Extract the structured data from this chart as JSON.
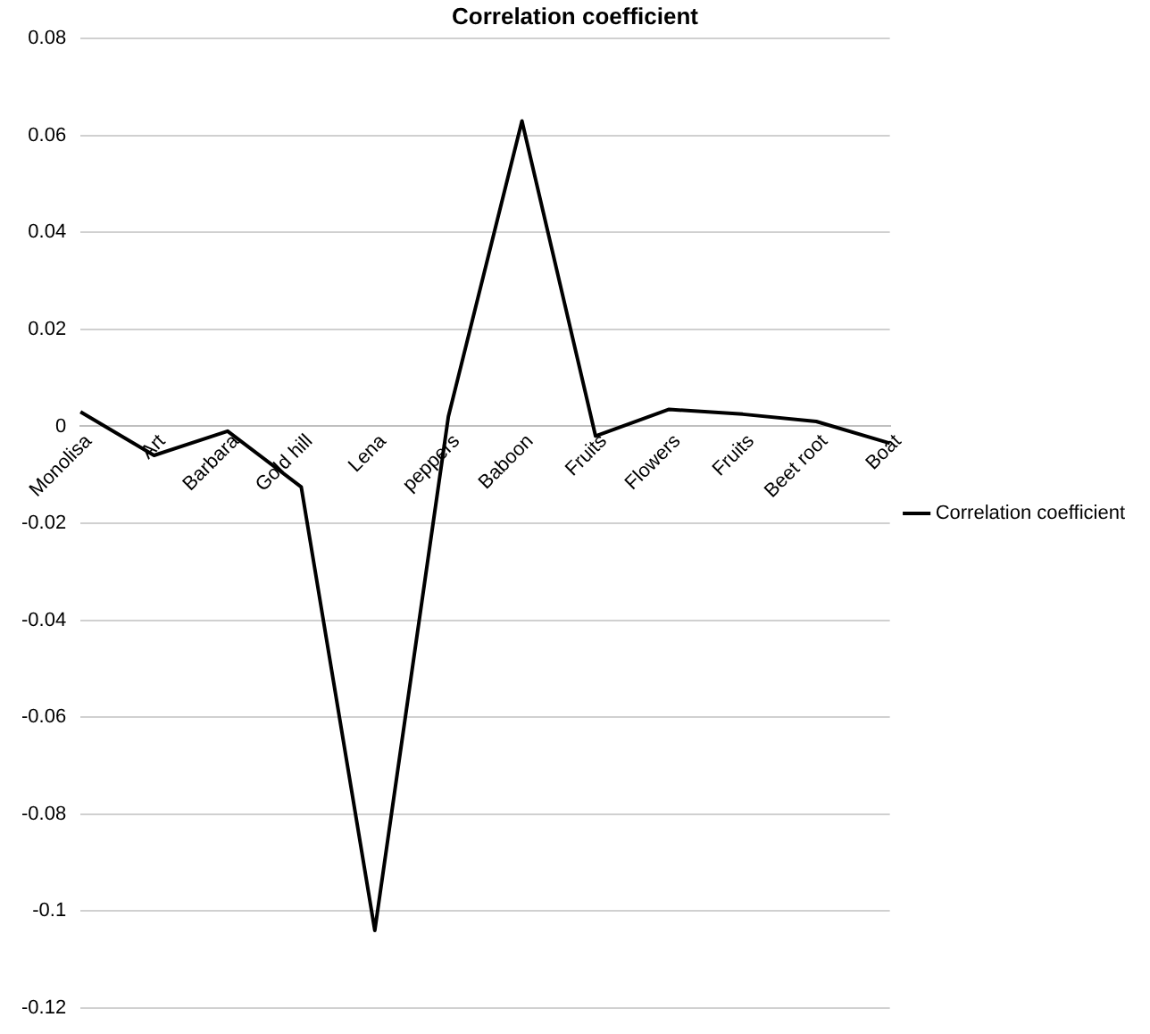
{
  "chart_data": {
    "type": "line",
    "title": "Correlation coefficient",
    "categories": [
      "Monolisa",
      "Art",
      "Barbara",
      "Gold hill",
      "Lena",
      "peppers",
      "Baboon",
      "Fruits",
      "Flowers",
      "Fruits",
      "Beet root",
      "Boat"
    ],
    "series": [
      {
        "name": "Correlation coefficient",
        "color": "#000000",
        "values": [
          0.003,
          -0.006,
          -0.001,
          -0.0125,
          -0.104,
          0.002,
          0.063,
          -0.002,
          0.0035,
          0.0025,
          0.001,
          -0.0035
        ]
      }
    ],
    "ylim": [
      -0.12,
      0.08
    ],
    "yticks": [
      -0.12,
      -0.1,
      -0.08,
      -0.06,
      -0.04,
      -0.02,
      0,
      0.02,
      0.04,
      0.06,
      0.08
    ],
    "grid": "y",
    "legend": "right",
    "marker": "none",
    "line_style": "solid"
  }
}
